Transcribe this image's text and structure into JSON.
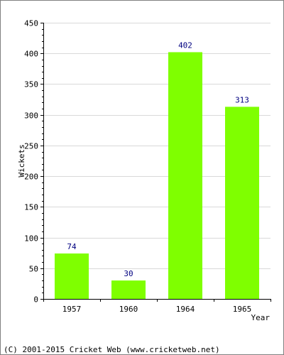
{
  "chart_data": {
    "type": "bar",
    "categories": [
      "1957",
      "1960",
      "1964",
      "1965"
    ],
    "values": [
      74,
      30,
      402,
      313
    ],
    "data_labels": [
      "74",
      "30",
      "402",
      "313"
    ],
    "title": "",
    "xlabel": "Year",
    "ylabel": "Wickets",
    "ylim": [
      0,
      450
    ],
    "yticks": [
      0,
      50,
      100,
      150,
      200,
      250,
      300,
      350,
      400,
      450
    ],
    "grid": true,
    "legend": "none",
    "colors": {
      "bar": "#7fff00",
      "data_label": "#000080",
      "grid": "#d9d9d9",
      "axis": "#000000"
    }
  },
  "footer": {
    "copyright": "(C) 2001-2015 Cricket Web (www.cricketweb.net)"
  }
}
